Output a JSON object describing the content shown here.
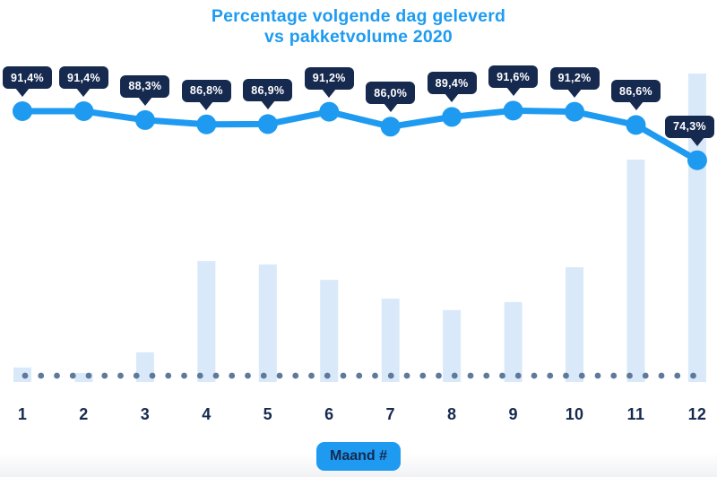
{
  "title": {
    "line1": "Percentage volgende dag geleverd",
    "line2": "vs pakketvolume 2020"
  },
  "x_axis_badge": "Maand #",
  "colors": {
    "accent_blue": "#1e9bf0",
    "navy": "#16294f",
    "bar_fill": "#d9e9f9",
    "dot_gray": "#5e7999",
    "label_text": "#ffffff"
  },
  "chart_data": {
    "type": "line+bar combo",
    "title": "Percentage volgende dag geleverd vs pakketvolume 2020",
    "xlabel": "Maand #",
    "ylabel": "",
    "grid": false,
    "legend": false,
    "categories": [
      "1",
      "2",
      "3",
      "4",
      "5",
      "6",
      "7",
      "8",
      "9",
      "10",
      "11",
      "12"
    ],
    "series": [
      {
        "name": "Percentage volgende dag geleverd",
        "type": "line",
        "unit": "%",
        "values": [
          91.4,
          91.4,
          88.3,
          86.8,
          86.9,
          91.2,
          86.0,
          89.4,
          91.6,
          91.2,
          86.6,
          74.3
        ],
        "point_labels": [
          "91,4%",
          "91,4%",
          "88,3%",
          "86,8%",
          "86,9%",
          "91,2%",
          "86,0%",
          "89,4%",
          "91,6%",
          "91,2%",
          "86,6%",
          "74,3%"
        ]
      },
      {
        "name": "Pakketvolume 2020",
        "type": "bar",
        "unit": "relative to max month (month 12 = 1.0), no numeric axis shown",
        "values": [
          0.047,
          0.029,
          0.096,
          0.392,
          0.381,
          0.331,
          0.27,
          0.233,
          0.259,
          0.372,
          0.721,
          1.0
        ]
      }
    ],
    "baseline": "dotted horizontal line at x-axis"
  }
}
